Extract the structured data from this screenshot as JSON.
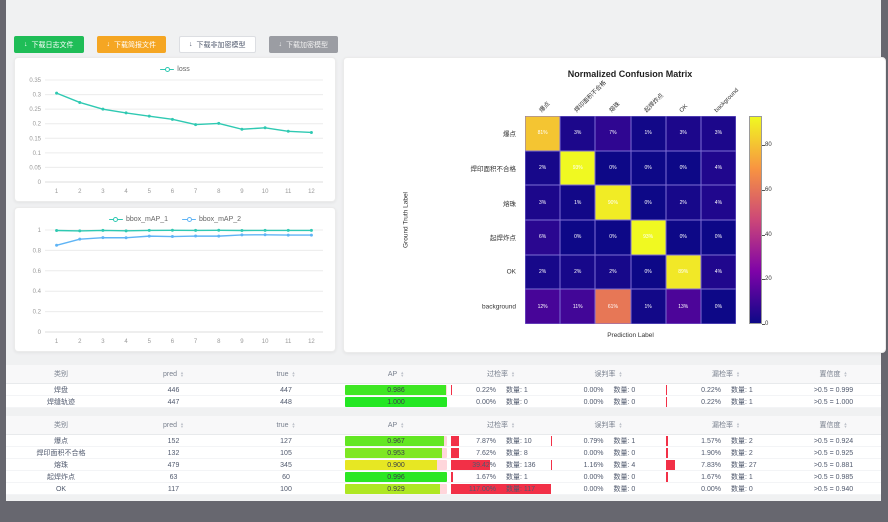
{
  "toolbar": {
    "download_icon": "↓",
    "buttons": [
      {
        "label": "下载日志文件",
        "variant": "success"
      },
      {
        "label": "下载简报文件",
        "variant": "warning"
      },
      {
        "label": "下载非加密模型",
        "variant": "default"
      },
      {
        "label": "下载加密模型",
        "variant": "disabled"
      }
    ]
  },
  "colors": {
    "teal": "#2fc9b2",
    "blue": "#5fb4f5",
    "red_bar": "#f23047",
    "ap_track": "#ffd6db",
    "success": "#1fbd57",
    "warning": "#f5a623",
    "disabled_gray": "#9b9da3",
    "grid_line": "#ececec"
  },
  "chart_data": [
    {
      "type": "line",
      "title": "loss",
      "legend": [
        "loss"
      ],
      "x": [
        1,
        2,
        3,
        4,
        5,
        6,
        7,
        8,
        9,
        10,
        11,
        12
      ],
      "series": [
        {
          "name": "loss",
          "color": "#2fc9b2",
          "values": [
            0.305,
            0.273,
            0.25,
            0.237,
            0.226,
            0.215,
            0.197,
            0.201,
            0.181,
            0.186,
            0.174,
            0.17
          ]
        }
      ],
      "ylim": [
        0,
        0.35
      ],
      "yticks": [
        0,
        0.05,
        0.1,
        0.15,
        0.2,
        0.25,
        0.3,
        0.35
      ]
    },
    {
      "type": "line",
      "title": "bbox_mAP",
      "legend": [
        "bbox_mAP_1",
        "bbox_mAP_2"
      ],
      "x": [
        1,
        2,
        3,
        4,
        5,
        6,
        7,
        8,
        9,
        10,
        11,
        12
      ],
      "series": [
        {
          "name": "bbox_mAP_1",
          "color": "#2fc9b2",
          "values": [
            0.995,
            0.991,
            0.996,
            0.992,
            0.996,
            0.997,
            0.996,
            0.997,
            0.995,
            0.996,
            0.996,
            0.996
          ]
        },
        {
          "name": "bbox_mAP_2",
          "color": "#5fb4f5",
          "values": [
            0.85,
            0.91,
            0.925,
            0.924,
            0.94,
            0.936,
            0.941,
            0.94,
            0.952,
            0.953,
            0.95,
            0.95
          ]
        }
      ],
      "ylim": [
        0,
        1
      ],
      "yticks": [
        0,
        0.2,
        0.4,
        0.6,
        0.8,
        1
      ]
    },
    {
      "type": "heatmap",
      "title": "Normalized Confusion Matrix",
      "xlabel": "Prediction Label",
      "ylabel": "Ground Truth Label",
      "labels": [
        "爆点",
        "焊印面积不合格",
        "熔珠",
        "起焊炸点",
        "OK",
        "background"
      ],
      "matrix": [
        [
          81,
          3,
          7,
          1,
          3,
          3
        ],
        [
          2,
          93,
          0,
          0,
          0,
          4
        ],
        [
          3,
          1,
          90,
          0,
          2,
          4
        ],
        [
          6,
          0,
          0,
          93,
          0,
          0
        ],
        [
          2,
          2,
          2,
          0,
          89,
          4
        ],
        [
          12,
          11,
          61,
          1,
          13,
          0
        ]
      ],
      "unit": "%",
      "colorbar_ticks": [
        80,
        60,
        40,
        20,
        0
      ],
      "colorbar_max": 93
    }
  ],
  "tables": [
    {
      "headers": [
        {
          "label": "类别",
          "sortable": false
        },
        {
          "label": "pred",
          "sortable": true
        },
        {
          "label": "true",
          "sortable": true
        },
        {
          "label": "AP",
          "sortable": true
        },
        {
          "label": "过检率",
          "sortable": true
        },
        {
          "label": "误判率",
          "sortable": true
        },
        {
          "label": "漏检率",
          "sortable": true
        },
        {
          "label": "置信度",
          "sortable": true
        }
      ],
      "rows": [
        {
          "cls": "焊盘",
          "pred": "446",
          "true": "447",
          "ap": "0.986",
          "ap_v": 0.986,
          "over_pct": "0.22%",
          "over_cnt": "数量: 1",
          "over_v": 0.22,
          "mis_pct": "0.00%",
          "mis_cnt": "数量: 0",
          "mis_v": 0,
          "miss_pct": "0.22%",
          "miss_cnt": "数量: 1",
          "miss_v": 0.22,
          "conf": ">0.5 = 0.999"
        },
        {
          "cls": "焊缝轨迹",
          "pred": "447",
          "true": "448",
          "ap": "1.000",
          "ap_v": 1.0,
          "over_pct": "0.00%",
          "over_cnt": "数量: 0",
          "over_v": 0,
          "mis_pct": "0.00%",
          "mis_cnt": "数量: 0",
          "mis_v": 0,
          "miss_pct": "0.22%",
          "miss_cnt": "数量: 1",
          "miss_v": 0.22,
          "conf": ">0.5 = 1.000"
        }
      ]
    },
    {
      "headers": [
        {
          "label": "类别",
          "sortable": false
        },
        {
          "label": "pred",
          "sortable": true
        },
        {
          "label": "true",
          "sortable": true
        },
        {
          "label": "AP",
          "sortable": true
        },
        {
          "label": "过检率",
          "sortable": true
        },
        {
          "label": "误判率",
          "sortable": true
        },
        {
          "label": "漏检率",
          "sortable": true
        },
        {
          "label": "置信度",
          "sortable": true
        }
      ],
      "rows": [
        {
          "cls": "爆点",
          "pred": "152",
          "true": "127",
          "ap": "0.967",
          "ap_v": 0.967,
          "over_pct": "7.87%",
          "over_cnt": "数量: 10",
          "over_v": 7.87,
          "mis_pct": "0.79%",
          "mis_cnt": "数量: 1",
          "mis_v": 0.79,
          "miss_pct": "1.57%",
          "miss_cnt": "数量: 2",
          "miss_v": 1.57,
          "conf": ">0.5 = 0.924"
        },
        {
          "cls": "焊印面积不合格",
          "pred": "132",
          "true": "105",
          "ap": "0.953",
          "ap_v": 0.953,
          "over_pct": "7.62%",
          "over_cnt": "数量: 8",
          "over_v": 7.62,
          "mis_pct": "0.00%",
          "mis_cnt": "数量: 0",
          "mis_v": 0,
          "miss_pct": "1.90%",
          "miss_cnt": "数量: 2",
          "miss_v": 1.9,
          "conf": ">0.5 = 0.925"
        },
        {
          "cls": "熔珠",
          "pred": "479",
          "true": "345",
          "ap": "0.900",
          "ap_v": 0.9,
          "over_pct": "39.42%",
          "over_cnt": "数量: 136",
          "over_v": 39.42,
          "mis_pct": "1.16%",
          "mis_cnt": "数量: 4",
          "mis_v": 1.16,
          "miss_pct": "7.83%",
          "miss_cnt": "数量: 27",
          "miss_v": 7.83,
          "conf": ">0.5 = 0.881"
        },
        {
          "cls": "起焊炸点",
          "pred": "63",
          "true": "60",
          "ap": "0.996",
          "ap_v": 0.996,
          "over_pct": "1.67%",
          "over_cnt": "数量: 1",
          "over_v": 1.67,
          "mis_pct": "0.00%",
          "mis_cnt": "数量: 0",
          "mis_v": 0,
          "miss_pct": "1.67%",
          "miss_cnt": "数量: 1",
          "miss_v": 1.67,
          "conf": ">0.5 = 0.985"
        },
        {
          "cls": "OK",
          "pred": "117",
          "true": "100",
          "ap": "0.929",
          "ap_v": 0.929,
          "over_pct": "117.00%",
          "over_cnt": "数量: 117",
          "over_v": 117,
          "mis_pct": "0.00%",
          "mis_cnt": "数量: 0",
          "mis_v": 0,
          "miss_pct": "0.00%",
          "miss_cnt": "数量: 0",
          "miss_v": 0,
          "conf": ">0.5 = 0.940"
        }
      ]
    }
  ]
}
